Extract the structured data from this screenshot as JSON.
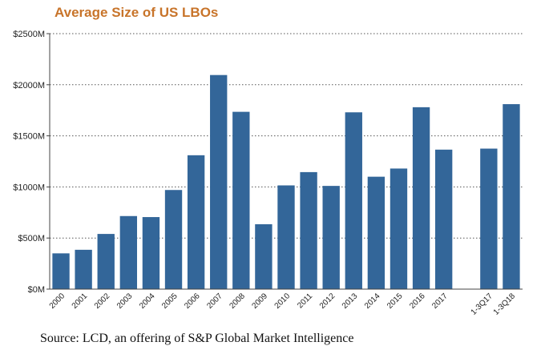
{
  "chart_data": {
    "type": "bar",
    "title": "Average Size of US LBOs",
    "source": "Source: LCD, an offering of S&P Global Market Intelligence",
    "xlabel": "",
    "ylabel": "",
    "ylim": [
      0,
      2500
    ],
    "y_ticks": [
      0,
      500,
      1000,
      1500,
      2000,
      2500
    ],
    "y_tick_labels": [
      "$0M",
      "$500M",
      "$1000M",
      "$1500M",
      "$2000M",
      "$2500M"
    ],
    "grid": true,
    "bar_color": "#336699",
    "slots": [
      "2000",
      "2001",
      "2002",
      "2003",
      "2004",
      "2005",
      "2006",
      "2007",
      "2008",
      "2009",
      "2010",
      "2011",
      "2012",
      "2013",
      "2014",
      "2015",
      "2016",
      "2017",
      "",
      "1-3Q17",
      "1-3Q18"
    ],
    "categories": [
      "2000",
      "2001",
      "2002",
      "2003",
      "2004",
      "2005",
      "2006",
      "2007",
      "2008",
      "2009",
      "2010",
      "2011",
      "2012",
      "2013",
      "2014",
      "2015",
      "2016",
      "2017",
      "1-3Q17",
      "1-3Q18"
    ],
    "values": [
      350,
      385,
      540,
      715,
      705,
      970,
      1310,
      2095,
      1735,
      635,
      1015,
      1145,
      1010,
      1730,
      1100,
      1180,
      1780,
      1365,
      1375,
      1810
    ]
  }
}
